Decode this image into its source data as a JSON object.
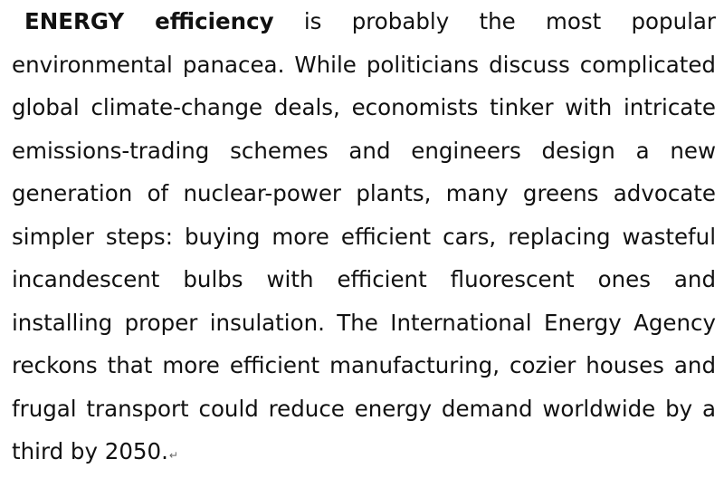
{
  "document": {
    "lead_bold": "ENERGY efficiency",
    "body": " is probably the most popular environmental panacea. While politicians discuss complicated global climate-change deals, economists tinker with intricate emissions-trading schemes and engineers design a new generation of nuclear-power plants, many greens advocate simpler steps: buying more efficient cars, replacing wasteful incandescent bulbs with efficient fluorescent ones and installing proper insulation. The International Energy Agency reckons that more efficient manufacturing, cozier houses and frugal transport could reduce energy demand worldwide by a third by 2050.",
    "paragraph_mark": "↵"
  }
}
